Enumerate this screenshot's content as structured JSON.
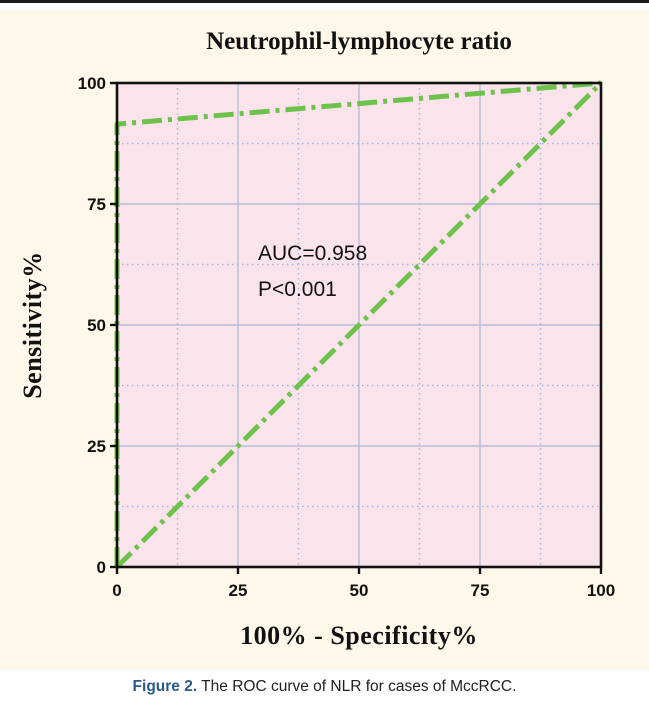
{
  "figure": {
    "caption_label": "Figure 2.",
    "caption_text": " The ROC curve of NLR for cases of MccRCC."
  },
  "chart_data": {
    "type": "line",
    "title": "Neutrophil-lymphocyte ratio",
    "xlabel": "100% - Specificity%",
    "ylabel": "Sensitivity%",
    "xlim": [
      0,
      100
    ],
    "ylim": [
      0,
      100
    ],
    "x_ticks": [
      "0",
      "25",
      "50",
      "75",
      "100"
    ],
    "y_ticks": [
      "0",
      "25",
      "50",
      "75",
      "100"
    ],
    "grid": true,
    "minor_grid": true,
    "colors": {
      "plot_background": "#fbe3ec",
      "grid_major": "#a7b9d8",
      "grid_minor": "#9fb5dd",
      "curve": "#6cc24a",
      "panel_background": "#fdf8ea"
    },
    "annotations": [
      "AUC=0.958",
      "P<0.001"
    ],
    "series": [
      {
        "role": "roc_curve",
        "style": "dash-dot",
        "points": [
          [
            0,
            0
          ],
          [
            0,
            91.5
          ],
          [
            100,
            100
          ]
        ]
      },
      {
        "role": "reference_line",
        "style": "dash-dot",
        "points": [
          [
            0,
            0
          ],
          [
            100,
            100
          ]
        ]
      }
    ]
  }
}
